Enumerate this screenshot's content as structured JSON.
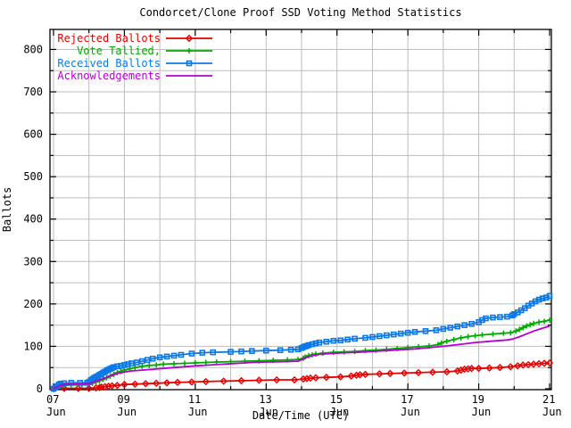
{
  "title": "Condorcet/Clone Proof SSD Voting Method Statistics",
  "chart_data": {
    "type": "line",
    "title": "Condorcet/Clone Proof SSD Voting Method Statistics",
    "xlabel": "Date/Time (UTC)",
    "ylabel": "Ballots",
    "x_unit": "day of June (UTC)",
    "xlim": [
      6.9,
      21.07
    ],
    "ylim": [
      0,
      848
    ],
    "grid": "on, gray, x every 1 day, y every 50 ballots",
    "legend_position": "top-left inside, no box",
    "axis_color": "#000000",
    "grid_color": "#bdbdbd",
    "background": "#ffffff",
    "x_major_ticks": [
      {
        "day": 7,
        "line1": "07",
        "line2": "Jun"
      },
      {
        "day": 9,
        "line1": "09",
        "line2": "Jun"
      },
      {
        "day": 11,
        "line1": "11",
        "line2": "Jun"
      },
      {
        "day": 13,
        "line1": "13",
        "line2": "Jun"
      },
      {
        "day": 15,
        "line1": "15",
        "line2": "Jun"
      },
      {
        "day": 17,
        "line1": "17",
        "line2": "Jun"
      },
      {
        "day": 19,
        "line1": "19",
        "line2": "Jun"
      },
      {
        "day": 21,
        "line1": "21",
        "line2": "Jun"
      }
    ],
    "x_minor_days": [
      8,
      10,
      12,
      14,
      16,
      18,
      20
    ],
    "y_major_ticks": [
      0,
      100,
      200,
      300,
      400,
      500,
      600,
      700,
      800
    ],
    "y_minor_ticks": [
      50,
      150,
      250,
      350,
      450,
      550,
      650,
      750
    ],
    "grid_days": [
      7,
      8,
      9,
      10,
      11,
      12,
      13,
      14,
      15,
      16,
      17,
      18,
      19,
      20,
      21
    ],
    "grid_values": [
      50,
      100,
      150,
      200,
      250,
      300,
      350,
      400,
      450,
      500,
      550,
      600,
      650,
      700,
      750,
      800
    ],
    "series": [
      {
        "name": "Rejected Ballots",
        "color": "#e60000",
        "marker": "diamond",
        "points": [
          [
            7.0,
            0
          ],
          [
            7.3,
            1
          ],
          [
            7.7,
            1
          ],
          [
            8.0,
            1
          ],
          [
            8.2,
            2
          ],
          [
            8.3,
            3
          ],
          [
            8.35,
            4
          ],
          [
            8.45,
            5
          ],
          [
            8.55,
            6
          ],
          [
            8.65,
            7
          ],
          [
            8.8,
            8
          ],
          [
            9.0,
            10
          ],
          [
            9.3,
            11
          ],
          [
            9.6,
            12
          ],
          [
            9.9,
            13
          ],
          [
            10.2,
            14
          ],
          [
            10.5,
            15
          ],
          [
            10.9,
            16
          ],
          [
            11.3,
            17
          ],
          [
            11.8,
            18
          ],
          [
            12.3,
            19
          ],
          [
            12.8,
            20
          ],
          [
            13.3,
            21
          ],
          [
            13.8,
            21
          ],
          [
            14.05,
            23
          ],
          [
            14.15,
            24
          ],
          [
            14.25,
            25
          ],
          [
            14.4,
            26
          ],
          [
            14.7,
            27
          ],
          [
            15.1,
            28
          ],
          [
            15.4,
            30
          ],
          [
            15.55,
            32
          ],
          [
            15.65,
            33
          ],
          [
            15.8,
            34
          ],
          [
            16.2,
            35
          ],
          [
            16.5,
            36
          ],
          [
            16.9,
            37
          ],
          [
            17.3,
            38
          ],
          [
            17.7,
            39
          ],
          [
            18.1,
            40
          ],
          [
            18.4,
            42
          ],
          [
            18.5,
            44
          ],
          [
            18.6,
            46
          ],
          [
            18.7,
            47
          ],
          [
            18.8,
            48
          ],
          [
            19.0,
            48
          ],
          [
            19.3,
            49
          ],
          [
            19.6,
            50
          ],
          [
            19.9,
            52
          ],
          [
            20.1,
            54
          ],
          [
            20.25,
            56
          ],
          [
            20.4,
            57
          ],
          [
            20.55,
            58
          ],
          [
            20.7,
            59
          ],
          [
            20.85,
            60
          ],
          [
            21.0,
            61
          ]
        ]
      },
      {
        "name": "Vote Tallied,",
        "color": "#00a800",
        "marker": "plus",
        "points": [
          [
            7.0,
            0
          ],
          [
            7.1,
            3
          ],
          [
            7.2,
            6
          ],
          [
            7.3,
            8
          ],
          [
            7.5,
            9
          ],
          [
            7.8,
            9
          ],
          [
            8.0,
            10
          ],
          [
            8.1,
            13
          ],
          [
            8.2,
            16
          ],
          [
            8.3,
            19
          ],
          [
            8.4,
            22
          ],
          [
            8.5,
            26
          ],
          [
            8.6,
            30
          ],
          [
            8.7,
            34
          ],
          [
            8.8,
            38
          ],
          [
            8.9,
            41
          ],
          [
            9.0,
            44
          ],
          [
            9.15,
            47
          ],
          [
            9.3,
            50
          ],
          [
            9.5,
            53
          ],
          [
            9.7,
            55
          ],
          [
            9.9,
            56
          ],
          [
            10.1,
            58
          ],
          [
            10.4,
            59
          ],
          [
            10.7,
            60
          ],
          [
            11.0,
            61
          ],
          [
            11.3,
            62
          ],
          [
            11.6,
            63
          ],
          [
            12.0,
            64
          ],
          [
            12.4,
            65
          ],
          [
            12.8,
            66
          ],
          [
            13.2,
            67
          ],
          [
            13.6,
            68
          ],
          [
            13.9,
            69
          ],
          [
            14.05,
            72
          ],
          [
            14.1,
            75
          ],
          [
            14.2,
            78
          ],
          [
            14.3,
            80
          ],
          [
            14.4,
            82
          ],
          [
            14.6,
            84
          ],
          [
            14.9,
            86
          ],
          [
            15.2,
            87
          ],
          [
            15.5,
            88
          ],
          [
            15.8,
            90
          ],
          [
            16.1,
            91
          ],
          [
            16.4,
            93
          ],
          [
            16.7,
            95
          ],
          [
            17.0,
            97
          ],
          [
            17.3,
            99
          ],
          [
            17.6,
            101
          ],
          [
            17.85,
            104
          ],
          [
            17.95,
            108
          ],
          [
            18.1,
            112
          ],
          [
            18.3,
            116
          ],
          [
            18.5,
            120
          ],
          [
            18.7,
            123
          ],
          [
            18.9,
            125
          ],
          [
            19.1,
            127
          ],
          [
            19.4,
            129
          ],
          [
            19.7,
            131
          ],
          [
            19.9,
            132
          ],
          [
            20.05,
            136
          ],
          [
            20.15,
            140
          ],
          [
            20.25,
            144
          ],
          [
            20.35,
            148
          ],
          [
            20.45,
            151
          ],
          [
            20.55,
            154
          ],
          [
            20.7,
            157
          ],
          [
            20.85,
            159
          ],
          [
            21.0,
            162
          ]
        ]
      },
      {
        "name": "Received Ballots",
        "color": "#0b78e6",
        "marker": "square",
        "points": [
          [
            7.0,
            0
          ],
          [
            7.05,
            3
          ],
          [
            7.1,
            6
          ],
          [
            7.15,
            10
          ],
          [
            7.2,
            12
          ],
          [
            7.3,
            13
          ],
          [
            7.5,
            14
          ],
          [
            7.75,
            14
          ],
          [
            7.95,
            14
          ],
          [
            8.0,
            16
          ],
          [
            8.05,
            20
          ],
          [
            8.1,
            23
          ],
          [
            8.15,
            26
          ],
          [
            8.2,
            28
          ],
          [
            8.25,
            30
          ],
          [
            8.3,
            33
          ],
          [
            8.35,
            35
          ],
          [
            8.4,
            38
          ],
          [
            8.45,
            40
          ],
          [
            8.5,
            43
          ],
          [
            8.55,
            45
          ],
          [
            8.6,
            47
          ],
          [
            8.65,
            49
          ],
          [
            8.7,
            51
          ],
          [
            8.8,
            53
          ],
          [
            8.9,
            54
          ],
          [
            9.0,
            56
          ],
          [
            9.1,
            58
          ],
          [
            9.2,
            60
          ],
          [
            9.35,
            62
          ],
          [
            9.5,
            65
          ],
          [
            9.65,
            68
          ],
          [
            9.8,
            71
          ],
          [
            10.0,
            74
          ],
          [
            10.2,
            76
          ],
          [
            10.4,
            78
          ],
          [
            10.6,
            80
          ],
          [
            10.9,
            83
          ],
          [
            11.2,
            85
          ],
          [
            11.5,
            86
          ],
          [
            12.0,
            87
          ],
          [
            12.3,
            88
          ],
          [
            12.6,
            89
          ],
          [
            13.0,
            90
          ],
          [
            13.4,
            91
          ],
          [
            13.7,
            92
          ],
          [
            13.9,
            93
          ],
          [
            14.0,
            96
          ],
          [
            14.05,
            98
          ],
          [
            14.1,
            100
          ],
          [
            14.15,
            101
          ],
          [
            14.2,
            103
          ],
          [
            14.3,
            105
          ],
          [
            14.4,
            107
          ],
          [
            14.5,
            109
          ],
          [
            14.7,
            111
          ],
          [
            14.9,
            113
          ],
          [
            15.1,
            114
          ],
          [
            15.3,
            116
          ],
          [
            15.5,
            118
          ],
          [
            15.8,
            120
          ],
          [
            16.0,
            122
          ],
          [
            16.2,
            124
          ],
          [
            16.4,
            126
          ],
          [
            16.6,
            128
          ],
          [
            16.8,
            130
          ],
          [
            17.0,
            132
          ],
          [
            17.2,
            134
          ],
          [
            17.5,
            136
          ],
          [
            17.8,
            138
          ],
          [
            18.0,
            141
          ],
          [
            18.2,
            144
          ],
          [
            18.4,
            147
          ],
          [
            18.6,
            150
          ],
          [
            18.8,
            153
          ],
          [
            19.0,
            157
          ],
          [
            19.1,
            162
          ],
          [
            19.2,
            166
          ],
          [
            19.4,
            168
          ],
          [
            19.6,
            169
          ],
          [
            19.8,
            170
          ],
          [
            19.95,
            173
          ],
          [
            20.0,
            176
          ],
          [
            20.1,
            180
          ],
          [
            20.2,
            185
          ],
          [
            20.3,
            190
          ],
          [
            20.4,
            196
          ],
          [
            20.5,
            201
          ],
          [
            20.6,
            206
          ],
          [
            20.7,
            210
          ],
          [
            20.8,
            213
          ],
          [
            20.9,
            215
          ],
          [
            21.0,
            219
          ]
        ]
      },
      {
        "name": "Acknowledgements",
        "color": "#b400d2",
        "marker": "none",
        "points": [
          [
            7.0,
            0
          ],
          [
            7.1,
            4
          ],
          [
            7.2,
            8
          ],
          [
            7.3,
            10
          ],
          [
            7.6,
            11
          ],
          [
            8.0,
            12
          ],
          [
            8.1,
            15
          ],
          [
            8.2,
            18
          ],
          [
            8.3,
            21
          ],
          [
            8.4,
            24
          ],
          [
            8.5,
            27
          ],
          [
            8.6,
            30
          ],
          [
            8.7,
            33
          ],
          [
            8.8,
            36
          ],
          [
            9.0,
            39
          ],
          [
            9.2,
            42
          ],
          [
            9.5,
            44
          ],
          [
            9.8,
            46
          ],
          [
            10.1,
            48
          ],
          [
            10.4,
            50
          ],
          [
            10.7,
            52
          ],
          [
            11.0,
            54
          ],
          [
            11.4,
            56
          ],
          [
            11.8,
            58
          ],
          [
            12.2,
            60
          ],
          [
            12.6,
            62
          ],
          [
            13.0,
            63
          ],
          [
            13.5,
            64
          ],
          [
            13.9,
            65
          ],
          [
            14.05,
            70
          ],
          [
            14.15,
            74
          ],
          [
            14.3,
            78
          ],
          [
            14.5,
            81
          ],
          [
            14.8,
            83
          ],
          [
            15.2,
            85
          ],
          [
            15.6,
            86
          ],
          [
            16.0,
            88
          ],
          [
            16.4,
            90
          ],
          [
            16.8,
            92
          ],
          [
            17.2,
            94
          ],
          [
            17.6,
            97
          ],
          [
            18.0,
            100
          ],
          [
            18.3,
            103
          ],
          [
            18.6,
            106
          ],
          [
            18.9,
            109
          ],
          [
            19.2,
            111
          ],
          [
            19.5,
            113
          ],
          [
            19.8,
            115
          ],
          [
            19.95,
            117
          ],
          [
            20.1,
            121
          ],
          [
            20.25,
            126
          ],
          [
            20.4,
            131
          ],
          [
            20.55,
            136
          ],
          [
            20.7,
            140
          ],
          [
            20.85,
            144
          ],
          [
            21.0,
            148
          ]
        ]
      }
    ]
  }
}
